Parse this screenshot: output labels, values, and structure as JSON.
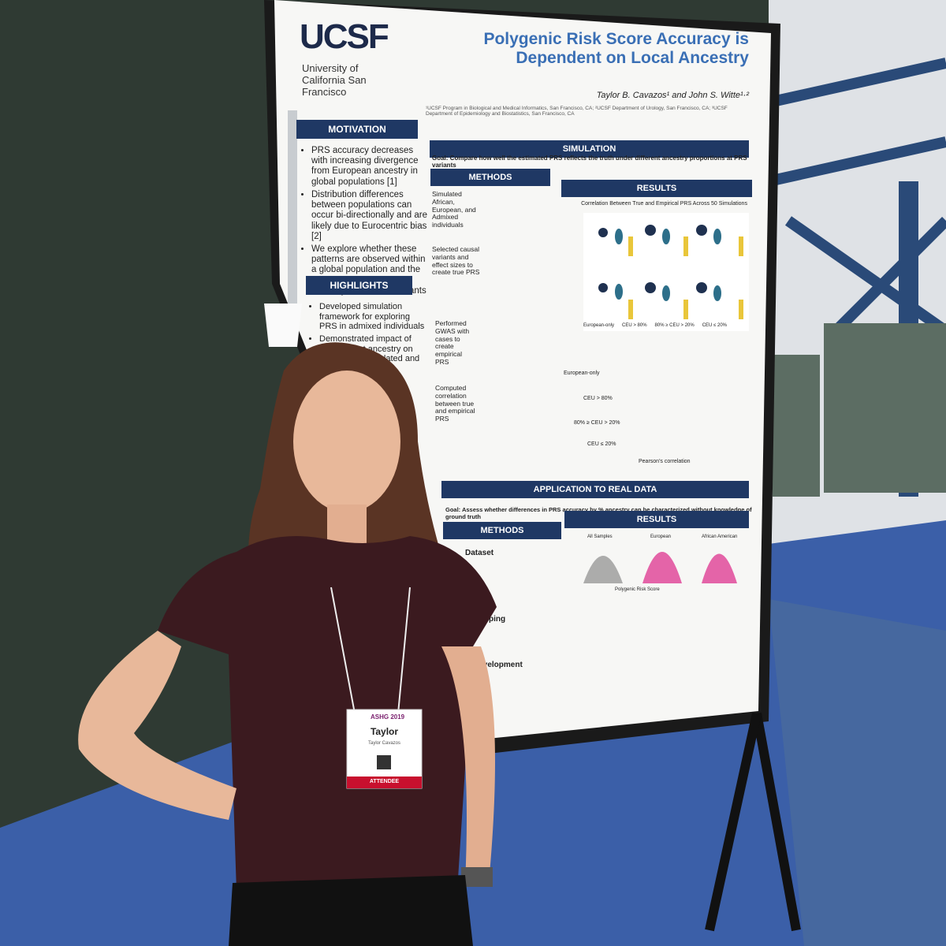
{
  "poster": {
    "logo": "UCSF",
    "institution": "University of California San Francisco",
    "title": "Polygenic Risk Score Accuracy is Dependent on Local Ancestry",
    "authors": "Taylor B. Cavazos¹ and John S. Witte¹·²",
    "affiliations": "¹UCSF Program in Biological and Medical Informatics, San Francisco, CA; ²UCSF Department of Urology, San Francisco, CA; ³UCSF Department of Epidemiology and Biostatistics, San Francisco, CA",
    "motivation": {
      "heading": "MOTIVATION",
      "bullets": [
        "PRS accuracy decreases with increasing divergence from European ancestry in global populations [1]",
        "Distribution differences between populations can occur bi-directionally and are likely due to Eurocentric bias [2]",
        "We explore whether these patterns are observed within a global population and the dependence on local ancestry at the PRS variants"
      ]
    },
    "highlights": {
      "heading": "HIGHLIGHTS",
      "bullets": [
        "Developed simulation framework for exploring PRS in admixed individuals",
        "Demonstrated impact of PRS variant ancestry on accuracy in simulated and real data"
      ]
    },
    "simulation": {
      "heading": "SIMULATION",
      "goal": "Goal: Compare how well the estimated PRS reflects the truth under different ancestry proportions at PRS variants",
      "methods": {
        "heading": "METHODS",
        "steps": [
          "Simulated African, European, and Admixed individuals",
          "Selected causal variants and effect sizes to create true PRS",
          "Performed GWAS with cases to create empirical PRS",
          "Computed correlation between true and empirical PRS"
        ]
      },
      "results": {
        "heading": "RESULTS",
        "plot_title": "Correlation Between True and Empirical PRS Across 50 Simulations",
        "legend": [
          "European-only",
          "CEU > 80%",
          "80% ≥ CEU > 20%",
          "CEU ≤ 20%"
        ],
        "weights_rows": [
          "European-only",
          "CEU > 80%",
          "80% ≥ CEU > 20%",
          "CEU ≤ 20%"
        ],
        "x_label": "Pearson's correlation"
      }
    },
    "application": {
      "heading": "APPLICATION TO REAL DATA",
      "goal": "Goal: Assess whether differences in PRS accuracy by % ancestry can be characterized without knowledge of ground truth",
      "methods": {
        "heading": "METHODS",
        "items": [
          "Dataset",
          "Mapping",
          "Development"
        ]
      },
      "results": {
        "heading": "RESULTS",
        "panels": [
          "All Samples",
          "European",
          "African American"
        ],
        "x_label": "Polygenic Risk Score"
      }
    }
  },
  "badge": {
    "event": "ASHG 2019",
    "first_name": "Taylor",
    "full_name": "Taylor Cavazos",
    "role": "ATTENDEE"
  }
}
